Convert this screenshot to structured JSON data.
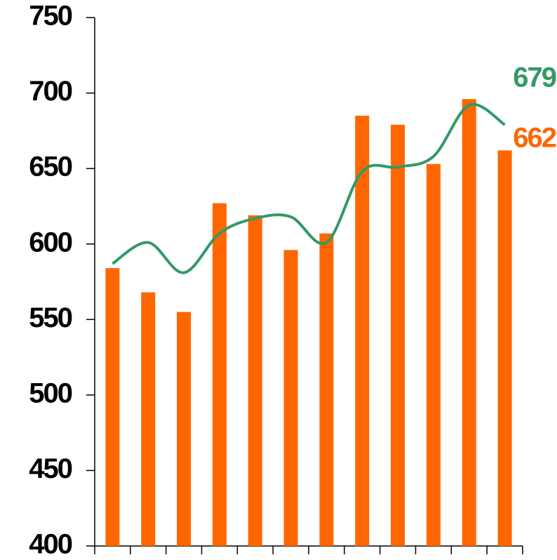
{
  "chart_data": {
    "type": "bar_line",
    "categories": [
      null,
      null,
      null,
      null,
      null,
      null,
      null,
      null,
      null,
      null,
      null,
      null
    ],
    "series": [
      {
        "type": "bar",
        "color": "#ff6600",
        "values": [
          584,
          568,
          555,
          627,
          619,
          596,
          607,
          685,
          679,
          653,
          696,
          662
        ]
      },
      {
        "type": "line",
        "color": "#339966",
        "values": [
          587,
          601,
          581,
          607,
          617,
          618,
          601,
          648,
          651,
          658,
          692,
          679
        ]
      }
    ],
    "ylim": [
      400,
      750
    ],
    "yticks": [
      400,
      450,
      500,
      550,
      600,
      650,
      700,
      750
    ]
  }
}
